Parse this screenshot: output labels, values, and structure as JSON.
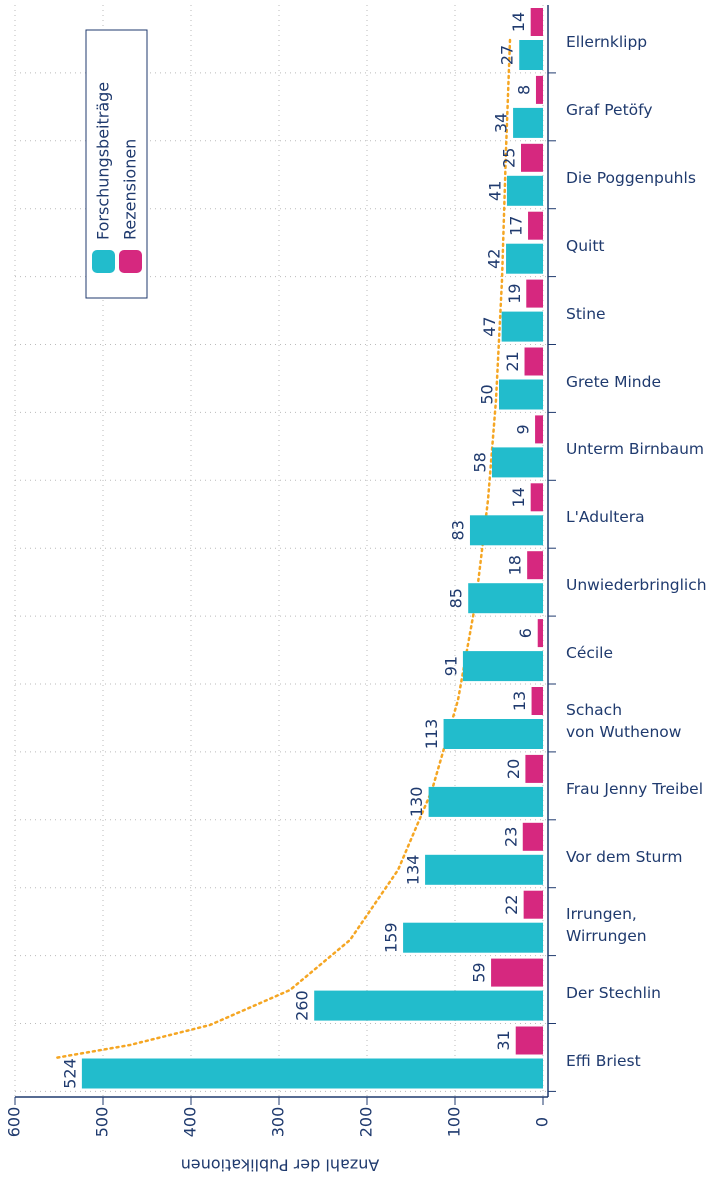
{
  "chart_data": {
    "type": "bar",
    "orientation": "horizontal",
    "x_label": "Anzahl der Publikationen",
    "categories": [
      "Ellernklipp",
      "Graf Petöfy",
      "Die Poggenpuhls",
      "Quitt",
      "Stine",
      "Grete Minde",
      "Unterm Birnbaum",
      "L'Adultera",
      "Unwiederbringlich",
      "Cécile",
      "Schach\nvon Wuthenow",
      "Frau Jenny Treibel",
      "Vor dem Sturm",
      "Irrungen,\nWirrungen",
      "Der Stechlin",
      "Effi Briest"
    ],
    "series": [
      {
        "name": "Forschungsbeiträge",
        "color": "#22bccc",
        "values": [
          27,
          34,
          41,
          42,
          47,
          50,
          58,
          83,
          85,
          91,
          113,
          130,
          134,
          159,
          260,
          524
        ]
      },
      {
        "name": "Rezensionen",
        "color": "#d6287f",
        "values": [
          14,
          8,
          25,
          17,
          19,
          21,
          9,
          14,
          18,
          6,
          13,
          20,
          23,
          22,
          59,
          31
        ]
      }
    ],
    "xlim": [
      0,
      600
    ],
    "xticks": [
      0,
      100,
      200,
      300,
      400,
      500,
      600
    ],
    "grid": true
  }
}
